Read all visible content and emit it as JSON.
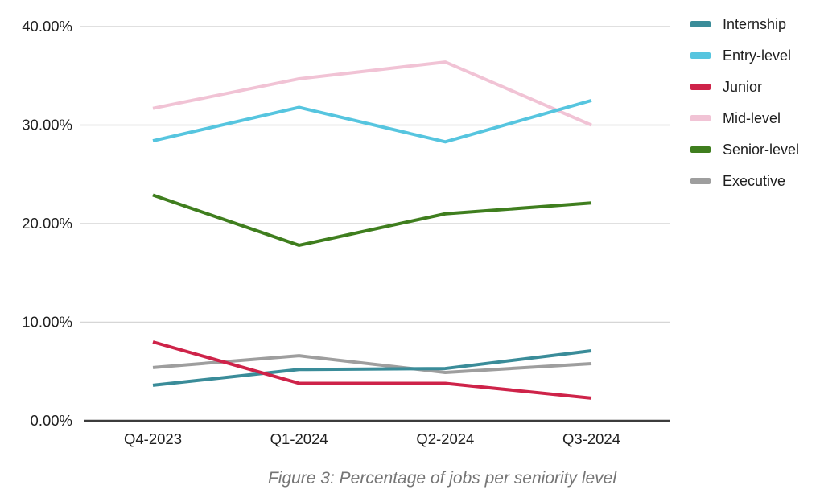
{
  "figure": {
    "caption": "Figure 3: Percentage of jobs per seniority level"
  },
  "chart_data": {
    "type": "line",
    "title": "",
    "xlabel": "",
    "ylabel": "",
    "categories": [
      "Q4-2023",
      "Q1-2024",
      "Q2-2024",
      "Q3-2024"
    ],
    "series": [
      {
        "name": "Internship",
        "color": "#3A8C99",
        "values": [
          3.6,
          5.2,
          5.3,
          7.1
        ]
      },
      {
        "name": "Entry-level",
        "color": "#56C5DF",
        "values": [
          28.4,
          31.8,
          28.3,
          32.5
        ]
      },
      {
        "name": "Junior",
        "color": "#CE2349",
        "values": [
          8.0,
          3.8,
          3.8,
          2.3
        ]
      },
      {
        "name": "Mid-level",
        "color": "#F1C3D5",
        "values": [
          31.7,
          34.7,
          36.4,
          30.0
        ]
      },
      {
        "name": "Senior-level",
        "color": "#3F7E1E",
        "values": [
          22.9,
          17.8,
          21.0,
          22.1
        ]
      },
      {
        "name": "Executive",
        "color": "#9E9E9E",
        "values": [
          5.4,
          6.6,
          4.9,
          5.8
        ]
      }
    ],
    "draw_order": [
      "Mid-level",
      "Senior-level",
      "Executive",
      "Internship",
      "Entry-level",
      "Junior"
    ],
    "ylim": [
      0,
      40
    ],
    "yticks": [
      {
        "value": 0,
        "label": "0.00%"
      },
      {
        "value": 10,
        "label": "10.00%"
      },
      {
        "value": 20,
        "label": "20.00%"
      },
      {
        "value": 30,
        "label": "30.00%"
      },
      {
        "value": 40,
        "label": "40.00%"
      }
    ],
    "grid": true,
    "legend_position": "right",
    "colors": {
      "grid": "#d6d6d6",
      "axis": "#3c3c3c",
      "tick_text": "#1f1f1f",
      "caption_text": "#757575"
    }
  }
}
